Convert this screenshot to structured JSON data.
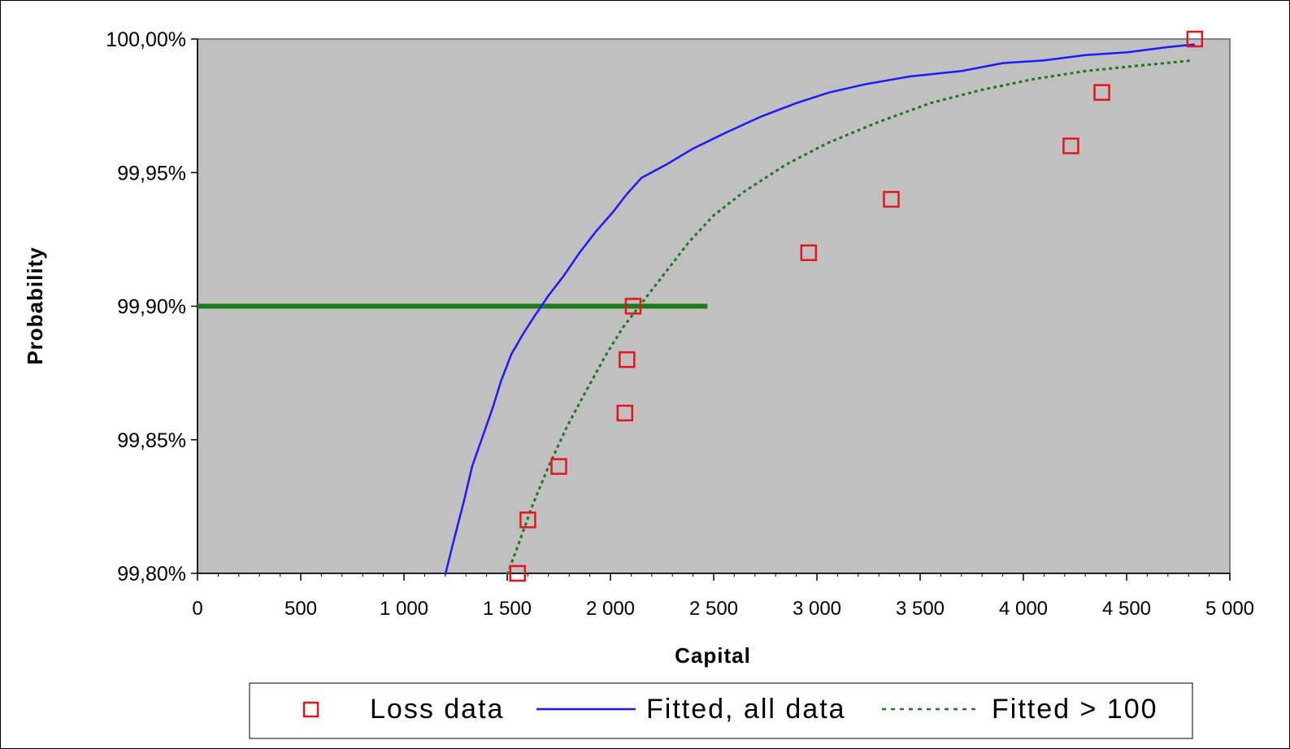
{
  "chart_data": {
    "type": "line",
    "xlabel": "Capital",
    "ylabel": "Probability",
    "xlim": [
      0,
      5000
    ],
    "ylim": [
      99.8,
      100.0
    ],
    "x_ticks": [
      0,
      500,
      1000,
      1500,
      2000,
      2500,
      3000,
      3500,
      4000,
      4500,
      5000
    ],
    "x_tick_labels": [
      "0",
      "500",
      "1 000",
      "1 500",
      "2 000",
      "2 500",
      "3 000",
      "3 500",
      "4 000",
      "4 500",
      "5 000"
    ],
    "y_ticks": [
      99.8,
      99.85,
      99.9,
      99.95,
      100.0
    ],
    "y_tick_labels": [
      "99,80%",
      "99,85%",
      "99,90%",
      "99,95%",
      "100,00%"
    ],
    "plot_background": "#c0c0c0",
    "grid": false,
    "legend_position": "bottom",
    "reference_line": {
      "y": 99.9,
      "x_from": 0,
      "x_to": 2470,
      "color": "#1b7a1b"
    },
    "series": [
      {
        "name": "Loss data",
        "style": "marker-square",
        "color": "#e8141b",
        "points": [
          [
            1550,
            99.8
          ],
          [
            1600,
            99.82
          ],
          [
            1750,
            99.84
          ],
          [
            2070,
            99.86
          ],
          [
            2080,
            99.88
          ],
          [
            2110,
            99.9
          ],
          [
            2960,
            99.92
          ],
          [
            3360,
            99.94
          ],
          [
            4230,
            99.96
          ],
          [
            4380,
            99.98
          ],
          [
            4830,
            100.0
          ]
        ]
      },
      {
        "name": "Fitted, all data",
        "style": "solid",
        "color": "#1a1aff",
        "points": [
          [
            1200,
            99.7995
          ],
          [
            1240,
            99.812
          ],
          [
            1290,
            99.827
          ],
          [
            1330,
            99.84
          ],
          [
            1380,
            99.851
          ],
          [
            1430,
            99.862
          ],
          [
            1470,
            99.872
          ],
          [
            1520,
            99.882
          ],
          [
            1580,
            99.89
          ],
          [
            1630,
            99.896
          ],
          [
            1700,
            99.904
          ],
          [
            1770,
            99.911
          ],
          [
            1850,
            99.92
          ],
          [
            1930,
            99.928
          ],
          [
            2010,
            99.935
          ],
          [
            2080,
            99.942
          ],
          [
            2150,
            99.948
          ],
          [
            2270,
            99.953
          ],
          [
            2400,
            99.959
          ],
          [
            2560,
            99.965
          ],
          [
            2730,
            99.971
          ],
          [
            2900,
            99.976
          ],
          [
            3060,
            99.98
          ],
          [
            3230,
            99.983
          ],
          [
            3450,
            99.986
          ],
          [
            3700,
            99.988
          ],
          [
            3900,
            99.991
          ],
          [
            4100,
            99.992
          ],
          [
            4300,
            99.994
          ],
          [
            4500,
            99.995
          ],
          [
            4700,
            99.997
          ],
          [
            4830,
            99.998
          ]
        ]
      },
      {
        "name": "Fitted > 100",
        "style": "dotted",
        "color": "#1b7a1b",
        "points": [
          [
            1500,
            99.7995
          ],
          [
            1560,
            99.812
          ],
          [
            1620,
            99.825
          ],
          [
            1700,
            99.84
          ],
          [
            1790,
            99.855
          ],
          [
            1880,
            99.868
          ],
          [
            1980,
            99.882
          ],
          [
            2060,
            99.892
          ],
          [
            2160,
            99.902
          ],
          [
            2270,
            99.913
          ],
          [
            2380,
            99.924
          ],
          [
            2500,
            99.934
          ],
          [
            2650,
            99.943
          ],
          [
            2850,
            99.953
          ],
          [
            3050,
            99.961
          ],
          [
            3300,
            99.969
          ],
          [
            3550,
            99.976
          ],
          [
            3800,
            99.981
          ],
          [
            4050,
            99.985
          ],
          [
            4300,
            99.988
          ],
          [
            4550,
            99.99
          ],
          [
            4820,
            99.992
          ]
        ]
      }
    ]
  }
}
